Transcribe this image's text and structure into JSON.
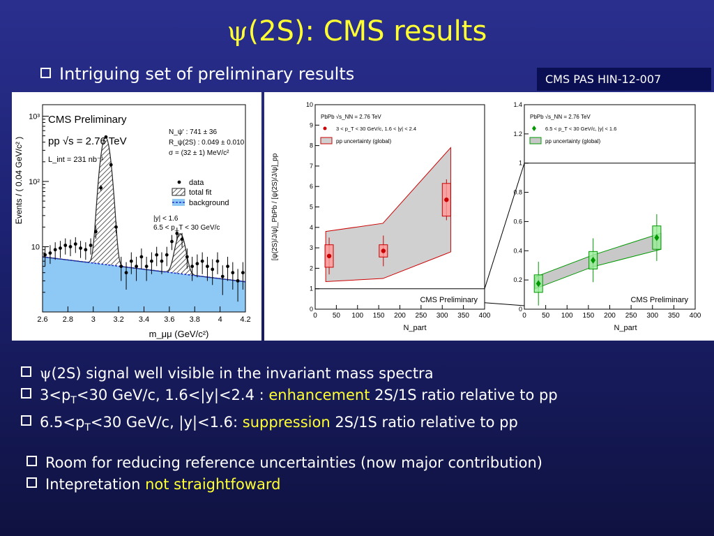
{
  "slide": {
    "title_psi": "ψ",
    "title_rest": "(2S): CMS results",
    "subtitle": "Intriguing set of preliminary results",
    "reference": "CMS PAS HIN-12-007",
    "bullets_a": [
      {
        "parts": [
          {
            "t": "ψ",
            "cls": "psi2"
          },
          {
            "t": "(2S) signal well visible in the invariant mass spectra"
          }
        ]
      },
      {
        "parts": [
          {
            "t": "3<p"
          },
          {
            "t": "T",
            "sub": true
          },
          {
            "t": "<30 GeV/c, 1.6<|y|<2.4 : "
          },
          {
            "t": "enhancement",
            "cls": "hl"
          },
          {
            "t": " 2S/1S ratio relative to pp"
          }
        ]
      },
      {
        "parts": [
          {
            "t": "6.5<p"
          },
          {
            "t": "T",
            "sub": true
          },
          {
            "t": "<30 GeV/c, |y|<1.6: "
          },
          {
            "t": "suppression",
            "cls": "hl"
          },
          {
            "t": " 2S/1S ratio relative to pp"
          }
        ]
      }
    ],
    "bullets_b": [
      {
        "parts": [
          {
            "t": "Room for reducing reference uncertainties (now major contribution)"
          }
        ]
      },
      {
        "parts": [
          {
            "t": "Intepretation "
          },
          {
            "t": "not straightfoward",
            "cls": "hl"
          }
        ]
      }
    ]
  },
  "chart_data": [
    {
      "type": "line",
      "description_text": {
        "header": "CMS Preliminary",
        "energy": "pp  √s = 2.76 TeV",
        "lumi": "L_int = 231 nb⁻¹",
        "stats": [
          "N_ψ' : 741 ± 36",
          "R_ψ(2S) : 0.049 ± 0.010",
          "σ = (32 ± 1) MeV/c²"
        ],
        "cuts": [
          "|y| < 1.6",
          "6.5 < p_T < 30 GeV/c"
        ]
      },
      "legend": [
        "data",
        "total fit",
        "background"
      ],
      "xlabel": "m_μμ (GeV/c²)",
      "ylabel": "Events / ( 0.04 GeV/c² )",
      "xlim": [
        2.6,
        4.2
      ],
      "ylim_log": [
        1,
        1500
      ],
      "xticks": [
        "2.6",
        "2.8",
        "3",
        "3.2",
        "3.4",
        "3.6",
        "3.8",
        "4",
        "4.2"
      ],
      "yticks": [
        "10",
        "10²",
        "10³"
      ],
      "log_y": true,
      "data_points": [
        {
          "x": 2.62,
          "y": 7.5
        },
        {
          "x": 2.66,
          "y": 8.0
        },
        {
          "x": 2.7,
          "y": 9.0
        },
        {
          "x": 2.74,
          "y": 9.5
        },
        {
          "x": 2.78,
          "y": 10.5
        },
        {
          "x": 2.82,
          "y": 10.0
        },
        {
          "x": 2.86,
          "y": 11.0
        },
        {
          "x": 2.9,
          "y": 9.5
        },
        {
          "x": 2.94,
          "y": 9.0
        },
        {
          "x": 2.98,
          "y": 10.5
        },
        {
          "x": 3.02,
          "y": 17
        },
        {
          "x": 3.06,
          "y": 80
        },
        {
          "x": 3.1,
          "y": 480
        },
        {
          "x": 3.14,
          "y": 180
        },
        {
          "x": 3.18,
          "y": 20
        },
        {
          "x": 3.22,
          "y": 5.0
        },
        {
          "x": 3.26,
          "y": 4.0
        },
        {
          "x": 3.3,
          "y": 6.0
        },
        {
          "x": 3.34,
          "y": 5.0
        },
        {
          "x": 3.38,
          "y": 7.0
        },
        {
          "x": 3.42,
          "y": 5.0
        },
        {
          "x": 3.46,
          "y": 6.0
        },
        {
          "x": 3.5,
          "y": 7.5
        },
        {
          "x": 3.54,
          "y": 6.0
        },
        {
          "x": 3.58,
          "y": 7.5
        },
        {
          "x": 3.62,
          "y": 12
        },
        {
          "x": 3.66,
          "y": 16
        },
        {
          "x": 3.7,
          "y": 13
        },
        {
          "x": 3.74,
          "y": 7.0
        },
        {
          "x": 3.78,
          "y": 5.0
        },
        {
          "x": 3.82,
          "y": 5.5
        },
        {
          "x": 3.86,
          "y": 6.0
        },
        {
          "x": 3.9,
          "y": 5.0
        },
        {
          "x": 3.94,
          "y": 4.5
        },
        {
          "x": 3.98,
          "y": 6.0
        },
        {
          "x": 4.02,
          "y": 3.5
        },
        {
          "x": 4.06,
          "y": 5.0
        },
        {
          "x": 4.1,
          "y": 4.0
        },
        {
          "x": 4.14,
          "y": 3.0
        },
        {
          "x": 4.18,
          "y": 4.0
        }
      ]
    },
    {
      "type": "scatter",
      "legend_title": "PbPb  √s_NN = 2.76 TeV",
      "series": [
        {
          "name": "3 < p_T < 30 GeV/c, 1.6 < |y| < 2.4",
          "color": "#cc0000",
          "points": [
            {
              "x": 33,
              "y": 2.6,
              "yerr": 0.9,
              "sys": 0.55
            },
            {
              "x": 161,
              "y": 2.85,
              "yerr": 0.75,
              "sys": 0.3
            },
            {
              "x": 310,
              "y": 5.35,
              "yerr": 1.0,
              "sys": 0.8
            }
          ]
        }
      ],
      "band_label": "pp uncertainty (global)",
      "band_upper": [
        {
          "x": 25,
          "y": 3.8
        },
        {
          "x": 160,
          "y": 4.2
        },
        {
          "x": 320,
          "y": 7.9
        }
      ],
      "band_lower": [
        {
          "x": 25,
          "y": 1.35
        },
        {
          "x": 160,
          "y": 1.5
        },
        {
          "x": 320,
          "y": 2.8
        }
      ],
      "reference_line": 1,
      "label": "CMS Preliminary",
      "xlabel": "N_part",
      "ylabel": "[ψ(2S)/J/ψ]_PbPb / [ψ(2S)/J/ψ]_pp",
      "xlim": [
        0,
        400
      ],
      "ylim": [
        0,
        10
      ],
      "xticks": [
        "0",
        "50",
        "100",
        "150",
        "200",
        "250",
        "300",
        "350",
        "400"
      ],
      "yticks": [
        "0",
        "1",
        "2",
        "3",
        "4",
        "5",
        "6",
        "7",
        "8",
        "9",
        "10"
      ]
    },
    {
      "type": "scatter",
      "legend_title": "PbPb  √s_NN = 2.76 TeV",
      "series": [
        {
          "name": "6.5 < p_T < 30 GeV/c, |y| < 1.6",
          "color": "#009900",
          "points": [
            {
              "x": 33,
              "y": 0.175,
              "yerr": 0.15,
              "sys": 0.06
            },
            {
              "x": 161,
              "y": 0.335,
              "yerr": 0.15,
              "sys": 0.06
            },
            {
              "x": 310,
              "y": 0.49,
              "yerr": 0.16,
              "sys": 0.08
            }
          ]
        }
      ],
      "band_label": "pp uncertainty (global)",
      "band_upper": [
        {
          "x": 25,
          "y": 0.22
        },
        {
          "x": 160,
          "y": 0.37
        },
        {
          "x": 320,
          "y": 0.52
        }
      ],
      "band_lower": [
        {
          "x": 25,
          "y": 0.14
        },
        {
          "x": 160,
          "y": 0.29
        },
        {
          "x": 320,
          "y": 0.41
        }
      ],
      "reference_line": 1,
      "label": "CMS Preliminary",
      "xlabel": "N_part",
      "xlim": [
        0,
        400
      ],
      "ylim": [
        0,
        1.4
      ],
      "xticks": [
        "0",
        "50",
        "100",
        "150",
        "200",
        "250",
        "300",
        "350",
        "400"
      ],
      "yticks": [
        "0",
        "0.2",
        "0.4",
        "0.6",
        "0.8",
        "1",
        "1.2",
        "1.4"
      ]
    }
  ]
}
